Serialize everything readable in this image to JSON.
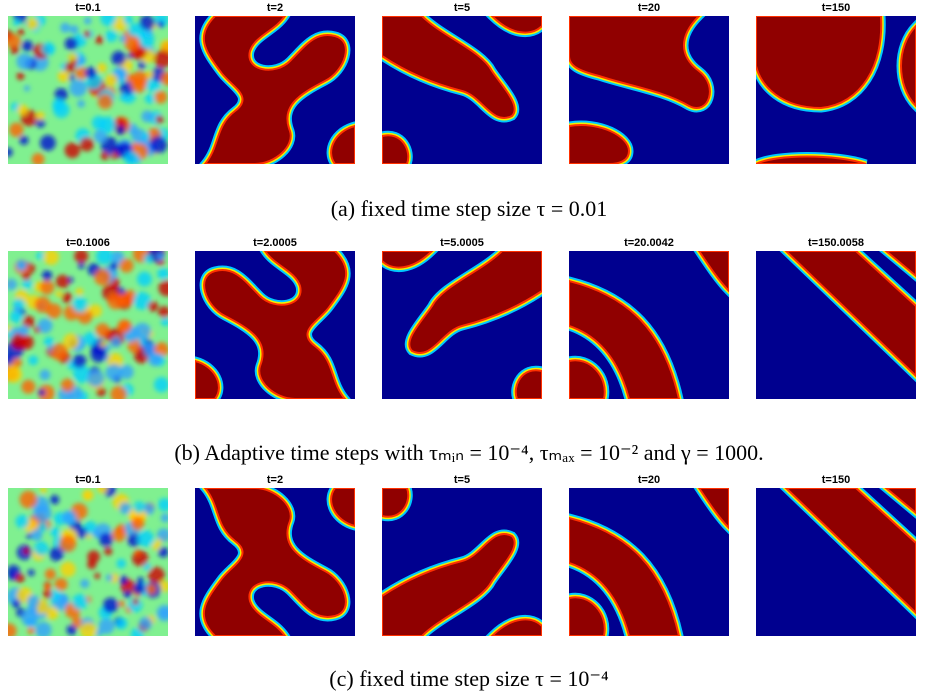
{
  "rows": [
    {
      "panels": [
        {
          "title": "t=0.1"
        },
        {
          "title": "t=2"
        },
        {
          "title": "t=5"
        },
        {
          "title": "t=20"
        },
        {
          "title": "t=150"
        }
      ],
      "caption": "(a) fixed time step size τ = 0.01"
    },
    {
      "panels": [
        {
          "title": "t=0.1006"
        },
        {
          "title": "t=2.0005"
        },
        {
          "title": "t=5.0005"
        },
        {
          "title": "t=20.0042"
        },
        {
          "title": "t=150.0058"
        }
      ],
      "caption": "(b) Adaptive time steps with τₘᵢₙ = 10⁻⁴, τₘₐₓ = 10⁻² and γ = 1000."
    },
    {
      "panels": [
        {
          "title": "t=0.1"
        },
        {
          "title": "t=2"
        },
        {
          "title": "t=5"
        },
        {
          "title": "t=20"
        },
        {
          "title": "t=150"
        }
      ],
      "caption": "(c) fixed time step size τ = 10⁻⁴"
    }
  ]
}
